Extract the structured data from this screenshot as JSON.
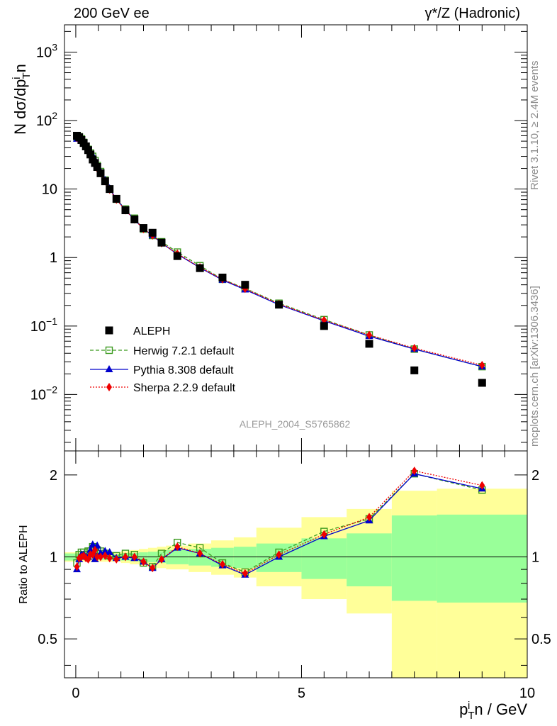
{
  "header": {
    "left": "200 GeV ee",
    "right": "γ*/Z (Hadronic)"
  },
  "side": {
    "rivet": "Rivet 3.1.10, ≥ 2.4M events",
    "url": "mcplots.cern.ch [arXiv:1306.3436]"
  },
  "watermark": "ALEPH_2004_S5765862",
  "colors": {
    "data": "#000000",
    "herwig": "#3a9a1e",
    "pythia": "#0000cc",
    "sherpa": "#ee0000",
    "band_outer": "#ffff99",
    "band_inner": "#99ff99"
  },
  "chart_data": [
    {
      "type": "scatter",
      "panel": "main",
      "ylabel": "N dσ/dp_T^i n",
      "yscale": "log",
      "ylim": [
        0.0015,
        2500
      ],
      "xlim": [
        -0.25,
        10
      ],
      "yticks": [
        "10^-2",
        "10^-1",
        "1",
        "10",
        "10^2",
        "10^3"
      ],
      "legend_position": "lower-left",
      "series": [
        {
          "name": "ALEPH",
          "style": "data-square",
          "x": [
            0.025,
            0.075,
            0.125,
            0.175,
            0.225,
            0.275,
            0.325,
            0.375,
            0.425,
            0.475,
            0.55,
            0.65,
            0.75,
            0.9,
            1.1,
            1.3,
            1.5,
            1.7,
            1.9,
            2.25,
            2.75,
            3.25,
            3.75,
            4.5,
            5.5,
            6.5,
            7.5,
            9.0
          ],
          "y": [
            60,
            57,
            52,
            47,
            42,
            37,
            32,
            27,
            24,
            21,
            17,
            13,
            10,
            7.2,
            4.9,
            3.6,
            2.7,
            2.3,
            1.65,
            1.05,
            0.7,
            0.51,
            0.4,
            0.205,
            0.1,
            0.055,
            0.0225,
            0.0148
          ]
        },
        {
          "name": "Herwig 7.2.1 default",
          "style": "dashed-open-square",
          "x": [
            0.025,
            0.075,
            0.125,
            0.175,
            0.225,
            0.275,
            0.325,
            0.375,
            0.425,
            0.475,
            0.55,
            0.65,
            0.75,
            0.9,
            1.1,
            1.3,
            1.5,
            1.7,
            1.9,
            2.25,
            2.75,
            3.25,
            3.75,
            4.5,
            5.5,
            6.5,
            7.5,
            9.0
          ],
          "y": [
            57,
            58,
            54,
            48,
            42,
            38,
            33.5,
            30,
            26,
            22,
            18,
            13.5,
            10,
            7.1,
            5.1,
            3.75,
            2.6,
            2.1,
            1.7,
            1.2,
            0.76,
            0.48,
            0.355,
            0.215,
            0.124,
            0.074,
            0.046,
            0.0255
          ]
        },
        {
          "name": "Pythia 8.308 default",
          "style": "solid-triangle",
          "x": [
            0.025,
            0.075,
            0.125,
            0.175,
            0.225,
            0.275,
            0.325,
            0.375,
            0.425,
            0.475,
            0.55,
            0.65,
            0.75,
            0.9,
            1.1,
            1.3,
            1.5,
            1.7,
            1.9,
            2.25,
            2.75,
            3.25,
            3.75,
            4.5,
            5.5,
            6.5,
            7.5,
            9.0
          ],
          "y": [
            54,
            56,
            53,
            48,
            42,
            37,
            34,
            31,
            27,
            22,
            18,
            13.5,
            10.2,
            7.1,
            4.95,
            3.6,
            2.6,
            2.1,
            1.63,
            1.12,
            0.71,
            0.47,
            0.34,
            0.205,
            0.119,
            0.071,
            0.046,
            0.0255
          ]
        },
        {
          "name": "Sherpa 2.2.9 default",
          "style": "dotted-diamond",
          "x": [
            0.025,
            0.075,
            0.125,
            0.175,
            0.225,
            0.275,
            0.325,
            0.375,
            0.425,
            0.475,
            0.55,
            0.65,
            0.75,
            0.9,
            1.1,
            1.3,
            1.5,
            1.7,
            1.9,
            2.25,
            2.75,
            3.25,
            3.75,
            4.5,
            5.5,
            6.5,
            7.5,
            9.0
          ],
          "y": [
            56,
            56,
            52,
            47,
            42,
            37,
            33,
            28,
            26,
            20,
            17,
            13,
            9.8,
            7.0,
            4.9,
            3.6,
            2.6,
            2.1,
            1.62,
            1.14,
            0.72,
            0.48,
            0.35,
            0.21,
            0.122,
            0.074,
            0.0475,
            0.0268
          ]
        }
      ]
    },
    {
      "type": "scatter",
      "panel": "ratio",
      "xlabel": "p_T^i n / GeV",
      "ylabel": "Ratio to ALEPH",
      "yscale": "log",
      "ylim": [
        0.36,
        2.45
      ],
      "xlim": [
        -0.25,
        10
      ],
      "xticks": [
        "0",
        "5",
        "10"
      ],
      "yticks": [
        "0.5",
        "1",
        "2"
      ],
      "uncertainty_bands": {
        "edges": [
          -0.25,
          0.05,
          0.1,
          0.15,
          0.2,
          0.25,
          0.3,
          0.35,
          0.4,
          0.45,
          0.5,
          0.6,
          0.7,
          0.8,
          1.0,
          1.2,
          1.4,
          1.6,
          1.8,
          2.0,
          2.5,
          3.0,
          3.5,
          4.0,
          5.0,
          6.0,
          7.0,
          8.0,
          10.0
        ],
        "inner_lo": [
          0.97,
          0.975,
          0.975,
          0.975,
          0.975,
          0.975,
          0.975,
          0.975,
          0.975,
          0.975,
          0.975,
          0.975,
          0.975,
          0.975,
          0.97,
          0.965,
          0.96,
          0.955,
          0.95,
          0.94,
          0.93,
          0.92,
          0.91,
          0.88,
          0.83,
          0.78,
          0.69,
          0.68
        ],
        "inner_hi": [
          1.03,
          1.025,
          1.025,
          1.025,
          1.025,
          1.025,
          1.025,
          1.025,
          1.025,
          1.025,
          1.025,
          1.025,
          1.025,
          1.025,
          1.03,
          1.035,
          1.04,
          1.045,
          1.05,
          1.06,
          1.07,
          1.08,
          1.09,
          1.12,
          1.17,
          1.22,
          1.42,
          1.43
        ],
        "outer_lo": [
          0.96,
          0.96,
          0.96,
          0.96,
          0.96,
          0.96,
          0.96,
          0.96,
          0.96,
          0.96,
          0.96,
          0.96,
          0.96,
          0.96,
          0.95,
          0.94,
          0.93,
          0.92,
          0.91,
          0.9,
          0.88,
          0.86,
          0.84,
          0.78,
          0.7,
          0.62,
          0.3,
          0.3
        ],
        "outer_hi": [
          1.04,
          1.04,
          1.04,
          1.04,
          1.04,
          1.04,
          1.04,
          1.04,
          1.04,
          1.04,
          1.04,
          1.04,
          1.04,
          1.04,
          1.05,
          1.06,
          1.07,
          1.08,
          1.09,
          1.1,
          1.12,
          1.15,
          1.18,
          1.28,
          1.4,
          1.5,
          1.75,
          1.78
        ]
      },
      "series": [
        {
          "name": "Herwig 7.2.1 default",
          "style": "dashed-open-square",
          "x": [
            0.025,
            0.075,
            0.125,
            0.175,
            0.225,
            0.275,
            0.325,
            0.375,
            0.425,
            0.475,
            0.55,
            0.65,
            0.75,
            0.9,
            1.1,
            1.3,
            1.5,
            1.7,
            1.9,
            2.25,
            2.75,
            3.25,
            3.75,
            4.5,
            5.5,
            6.5,
            7.5,
            9.0
          ],
          "y": [
            0.95,
            1.02,
            1.04,
            1.04,
            1.02,
            1.05,
            1.05,
            1.09,
            1.08,
            1.06,
            1.05,
            1.03,
            1.01,
            1.01,
            1.03,
            1.02,
            0.95,
            0.92,
            1.03,
            1.13,
            1.08,
            0.95,
            0.88,
            1.04,
            1.24,
            1.38,
            2.02,
            1.76
          ]
        },
        {
          "name": "Pythia 8.308 default",
          "style": "solid-triangle",
          "x": [
            0.025,
            0.075,
            0.125,
            0.175,
            0.225,
            0.275,
            0.325,
            0.375,
            0.425,
            0.475,
            0.55,
            0.65,
            0.75,
            0.9,
            1.1,
            1.3,
            1.5,
            1.7,
            1.9,
            2.25,
            2.75,
            3.25,
            3.75,
            4.5,
            5.5,
            6.5,
            7.5,
            9.0
          ],
          "y": [
            0.9,
            0.98,
            1.02,
            1.02,
            1.0,
            1.0,
            1.06,
            1.11,
            0.98,
            1.1,
            1.03,
            1.05,
            1.04,
            0.99,
            1.0,
            0.99,
            0.96,
            0.91,
            0.98,
            1.08,
            1.03,
            0.93,
            0.86,
            1.0,
            1.19,
            1.36,
            2.02,
            1.78
          ]
        },
        {
          "name": "Sherpa 2.2.9 default",
          "style": "dotted-diamond",
          "x": [
            0.025,
            0.075,
            0.125,
            0.175,
            0.225,
            0.275,
            0.325,
            0.375,
            0.425,
            0.475,
            0.55,
            0.65,
            0.75,
            0.9,
            1.1,
            1.3,
            1.5,
            1.7,
            1.9,
            2.25,
            2.75,
            3.25,
            3.75,
            4.5,
            5.5,
            6.5,
            7.5,
            9.0
          ],
          "y": [
            0.92,
            0.99,
            1.0,
            1.01,
            0.99,
            0.98,
            1.02,
            1.02,
            1.06,
            1.0,
            1.0,
            1.01,
            0.99,
            0.98,
            1.0,
            1.0,
            0.96,
            0.91,
            0.98,
            1.09,
            1.03,
            0.94,
            0.87,
            1.02,
            1.21,
            1.4,
            2.07,
            1.83
          ]
        }
      ]
    }
  ]
}
